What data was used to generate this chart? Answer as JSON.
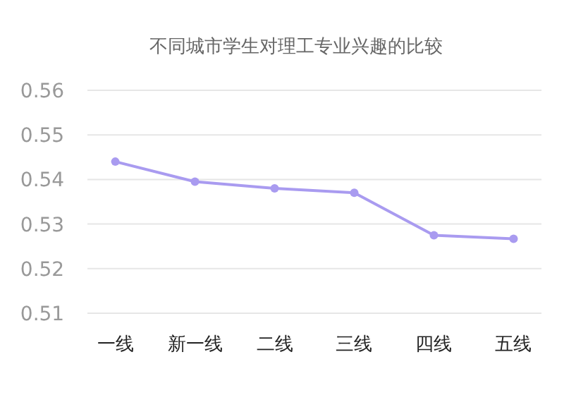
{
  "chart_data": {
    "type": "line",
    "title": "不同城市学生对理工专业兴趣的比较",
    "categories": [
      "一线",
      "新一线",
      "二线",
      "三线",
      "四线",
      "五线"
    ],
    "series": [
      {
        "color": "#a99bf0",
        "values": [
          0.544,
          0.5395,
          0.538,
          0.537,
          0.5275,
          0.5267
        ]
      }
    ],
    "ylim": [
      0.51,
      0.56
    ],
    "yticks": [
      0.51,
      0.52,
      0.53,
      0.54,
      0.55,
      0.56
    ],
    "grid": "y",
    "marker": "circle",
    "line_style": "solid"
  }
}
